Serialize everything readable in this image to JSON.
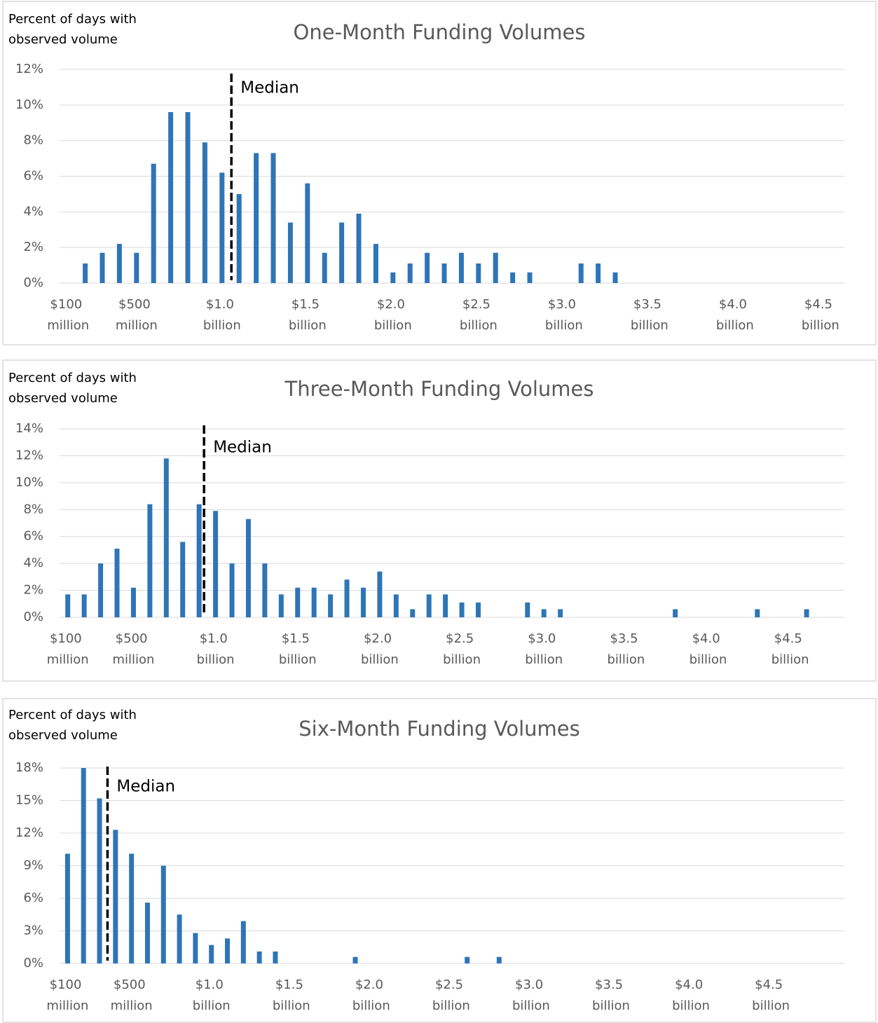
{
  "chart_data": [
    {
      "type": "bar",
      "title": "One-Month Funding Volumes",
      "ylabel": [
        "Percent of days with",
        "observed volume"
      ],
      "x": [
        0.2,
        0.3,
        0.4,
        0.5,
        0.6,
        0.7,
        0.8,
        0.9,
        1.0,
        1.1,
        1.2,
        1.3,
        1.4,
        1.5,
        1.6,
        1.7,
        1.8,
        1.9,
        2.0,
        2.1,
        2.2,
        2.3,
        2.4,
        2.5,
        2.6,
        2.7,
        2.8,
        3.1,
        3.2,
        3.3
      ],
      "values": [
        1.1,
        1.7,
        2.2,
        1.7,
        6.7,
        9.6,
        9.6,
        7.9,
        6.2,
        5.0,
        7.3,
        7.3,
        3.4,
        5.6,
        1.7,
        3.4,
        3.9,
        2.2,
        0.6,
        1.1,
        1.7,
        1.1,
        1.7,
        1.1,
        1.7,
        0.6,
        0.6,
        1.1,
        1.1,
        0.6
      ],
      "color": "#2e75b6",
      "xlim": [
        0.05,
        4.64
      ],
      "ylim": [
        0,
        12
      ],
      "xticks": [
        {
          "value": 0.1,
          "label": "$100 million"
        },
        {
          "value": 0.5,
          "label": "$500 million"
        },
        {
          "value": 1.0,
          "label": "$1.0 billion"
        },
        {
          "value": 1.5,
          "label": "$1.5 billion"
        },
        {
          "value": 2.0,
          "label": "$2.0 billion"
        },
        {
          "value": 2.5,
          "label": "$2.5 billion"
        },
        {
          "value": 3.0,
          "label": "$3.0 billion"
        },
        {
          "value": 3.5,
          "label": "$3.5 billion"
        },
        {
          "value": 4.0,
          "label": "$4.0 billion"
        },
        {
          "value": 4.5,
          "label": "$4.5 billion"
        }
      ],
      "yticks": [
        {
          "value": 0,
          "label": "0%"
        },
        {
          "value": 2,
          "label": "2%"
        },
        {
          "value": 4,
          "label": "4%"
        },
        {
          "value": 6,
          "label": "6%"
        },
        {
          "value": 8,
          "label": "8%"
        },
        {
          "value": 10,
          "label": "10%"
        },
        {
          "value": 12,
          "label": "12%"
        }
      ],
      "grid": true,
      "median": {
        "label": "Median",
        "value": 1.055
      }
    },
    {
      "type": "bar",
      "title": "Three-Month Funding Volumes",
      "ylabel": [
        "Percent of days with",
        "observed volume"
      ],
      "x": [
        0.1,
        0.2,
        0.3,
        0.4,
        0.5,
        0.6,
        0.7,
        0.8,
        0.9,
        1.0,
        1.1,
        1.2,
        1.3,
        1.4,
        1.5,
        1.6,
        1.7,
        1.8,
        1.9,
        2.0,
        2.1,
        2.2,
        2.3,
        2.4,
        2.5,
        2.6,
        2.9,
        3.0,
        3.1,
        3.8,
        4.3,
        4.6
      ],
      "values": [
        1.7,
        1.7,
        4.0,
        5.1,
        2.2,
        8.4,
        11.8,
        5.6,
        8.4,
        7.9,
        4.0,
        7.3,
        4.0,
        1.7,
        2.2,
        2.2,
        1.7,
        2.8,
        2.2,
        3.4,
        1.7,
        0.6,
        1.7,
        1.7,
        1.1,
        1.1,
        1.1,
        0.6,
        0.6,
        0.6,
        0.6,
        0.6
      ],
      "color": "#2e75b6",
      "xlim": [
        0.05,
        4.83
      ],
      "ylim": [
        0,
        14
      ],
      "xticks": [
        {
          "value": 0.1,
          "label": "$100 million"
        },
        {
          "value": 0.5,
          "label": "$500 million"
        },
        {
          "value": 1.0,
          "label": "$1.0 billion"
        },
        {
          "value": 1.5,
          "label": "$1.5 billion"
        },
        {
          "value": 2.0,
          "label": "$2.0 billion"
        },
        {
          "value": 2.5,
          "label": "$2.5 billion"
        },
        {
          "value": 3.0,
          "label": "$3.0 billion"
        },
        {
          "value": 3.5,
          "label": "$3.5 billion"
        },
        {
          "value": 4.0,
          "label": "$4.0 billion"
        },
        {
          "value": 4.5,
          "label": "$4.5 billion"
        }
      ],
      "yticks": [
        {
          "value": 0,
          "label": "0%"
        },
        {
          "value": 2,
          "label": "2%"
        },
        {
          "value": 4,
          "label": "4%"
        },
        {
          "value": 6,
          "label": "6%"
        },
        {
          "value": 8,
          "label": "8%"
        },
        {
          "value": 10,
          "label": "10%"
        },
        {
          "value": 12,
          "label": "12%"
        },
        {
          "value": 14,
          "label": "14%"
        }
      ],
      "grid": true,
      "median": {
        "label": "Median",
        "value": 0.93
      }
    },
    {
      "type": "bar",
      "title": "Six-Month Funding Volumes",
      "ylabel": [
        "Percent of days with",
        "observed volume"
      ],
      "x": [
        0.1,
        0.2,
        0.3,
        0.4,
        0.5,
        0.6,
        0.7,
        0.8,
        0.9,
        1.0,
        1.1,
        1.2,
        1.3,
        1.4,
        1.9,
        2.6,
        2.8
      ],
      "values": [
        10.1,
        18.0,
        15.2,
        12.3,
        10.1,
        5.6,
        9.0,
        4.5,
        2.8,
        1.7,
        2.3,
        3.9,
        1.1,
        1.1,
        0.6,
        0.6,
        0.6
      ],
      "color": "#2e75b6",
      "xlim": [
        0.05,
        4.96
      ],
      "ylim": [
        0,
        18
      ],
      "xticks": [
        {
          "value": 0.1,
          "label": "$100 million"
        },
        {
          "value": 0.5,
          "label": "$500 million"
        },
        {
          "value": 1.0,
          "label": "$1.0 billion"
        },
        {
          "value": 1.5,
          "label": "$1.5 billion"
        },
        {
          "value": 2.0,
          "label": "$2.0 billion"
        },
        {
          "value": 2.5,
          "label": "$2.5 billion"
        },
        {
          "value": 3.0,
          "label": "$3.0 billion"
        },
        {
          "value": 3.5,
          "label": "$3.5 billion"
        },
        {
          "value": 4.0,
          "label": "$4.0 billion"
        },
        {
          "value": 4.5,
          "label": "$4.5 billion"
        }
      ],
      "yticks": [
        {
          "value": 0,
          "label": "0%"
        },
        {
          "value": 3,
          "label": "3%"
        },
        {
          "value": 6,
          "label": "6%"
        },
        {
          "value": 9,
          "label": "9%"
        },
        {
          "value": 12,
          "label": "12%"
        },
        {
          "value": 15,
          "label": "15%"
        },
        {
          "value": 18,
          "label": "18%"
        }
      ],
      "grid": true,
      "median": {
        "label": "Median",
        "value": 0.35
      }
    }
  ]
}
